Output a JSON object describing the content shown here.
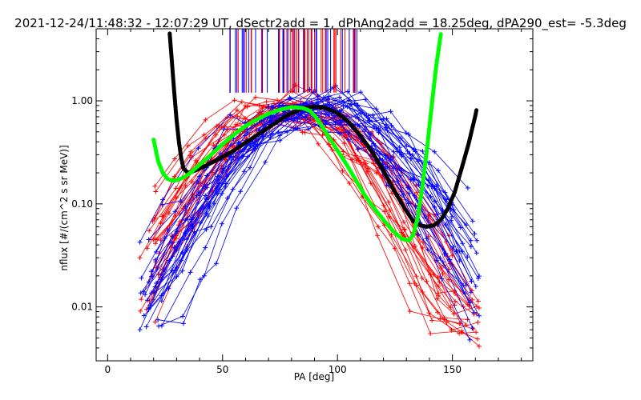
{
  "chart_data": {
    "type": "line",
    "title": "2021-12-24/11:48:32 - 12:07:29 UT, dSectr2add = 1, dPhAng2add = 18.25deg, dPA290_est=  -5.3deg",
    "xlabel": "PA [deg]",
    "ylabel": "nflux [#/(cm^2 s sr MeV)]",
    "xlim": [
      -5,
      185
    ],
    "ylim": [
      0.003,
      5.0
    ],
    "yscale": "log",
    "x_ticks": [
      {
        "value": 0,
        "label": "0"
      },
      {
        "value": 50,
        "label": "50"
      },
      {
        "value": 100,
        "label": "100"
      },
      {
        "value": 150,
        "label": "150"
      }
    ],
    "y_ticks": [
      {
        "value": 0.01,
        "label": "0.01"
      },
      {
        "value": 0.1,
        "label": "0.10"
      },
      {
        "value": 1.0,
        "label": "1.00"
      }
    ],
    "colors": {
      "series_red": "#ff0000",
      "series_blue": "#0000ff",
      "fit_black": "#000000",
      "fit_green": "#00ff00"
    },
    "fits": [
      {
        "color": "black",
        "x": [
          27,
          28,
          29,
          30,
          31,
          32,
          33,
          35,
          38,
          42,
          48,
          55,
          62,
          70,
          78,
          85,
          90,
          95,
          100,
          105,
          110,
          115,
          120,
          125,
          130,
          133,
          136,
          139,
          142,
          145,
          148,
          151,
          154,
          157,
          159,
          160,
          160.5
        ],
        "y": [
          4.5,
          2.3,
          1.2,
          0.65,
          0.4,
          0.28,
          0.22,
          0.2,
          0.21,
          0.23,
          0.27,
          0.33,
          0.42,
          0.55,
          0.72,
          0.85,
          0.88,
          0.85,
          0.76,
          0.62,
          0.46,
          0.32,
          0.21,
          0.13,
          0.085,
          0.068,
          0.062,
          0.06,
          0.062,
          0.07,
          0.09,
          0.13,
          0.22,
          0.38,
          0.58,
          0.72,
          0.82
        ]
      },
      {
        "color": "green",
        "x": [
          20,
          21,
          22,
          24,
          26,
          28,
          30,
          33,
          36,
          40,
          45,
          50,
          55,
          60,
          65,
          70,
          75,
          80,
          85,
          88,
          90,
          93,
          96,
          100,
          104,
          108,
          112,
          116,
          120,
          124,
          128,
          131,
          133,
          135,
          137,
          139,
          141,
          143,
          145
        ],
        "y": [
          0.42,
          0.33,
          0.26,
          0.2,
          0.175,
          0.168,
          0.17,
          0.18,
          0.2,
          0.24,
          0.3,
          0.38,
          0.47,
          0.57,
          0.66,
          0.75,
          0.82,
          0.87,
          0.85,
          0.8,
          0.72,
          0.58,
          0.45,
          0.33,
          0.24,
          0.17,
          0.12,
          0.09,
          0.07,
          0.055,
          0.046,
          0.044,
          0.05,
          0.075,
          0.15,
          0.35,
          0.9,
          2.2,
          4.5
        ]
      }
    ],
    "series_summary": {
      "red": {
        "x_range": [
          14,
          160
        ],
        "peak_x": 78,
        "peak_y": 1.05,
        "count": 60
      },
      "blue": {
        "x_range": [
          15,
          163
        ],
        "peak_x": 92,
        "peak_y": 1.0,
        "count": 70
      }
    },
    "tick_marks": {
      "x_range": [
        53,
        109
      ],
      "y_range": [
        1.2,
        5.0
      ],
      "colors": [
        "red",
        "blue"
      ]
    }
  }
}
